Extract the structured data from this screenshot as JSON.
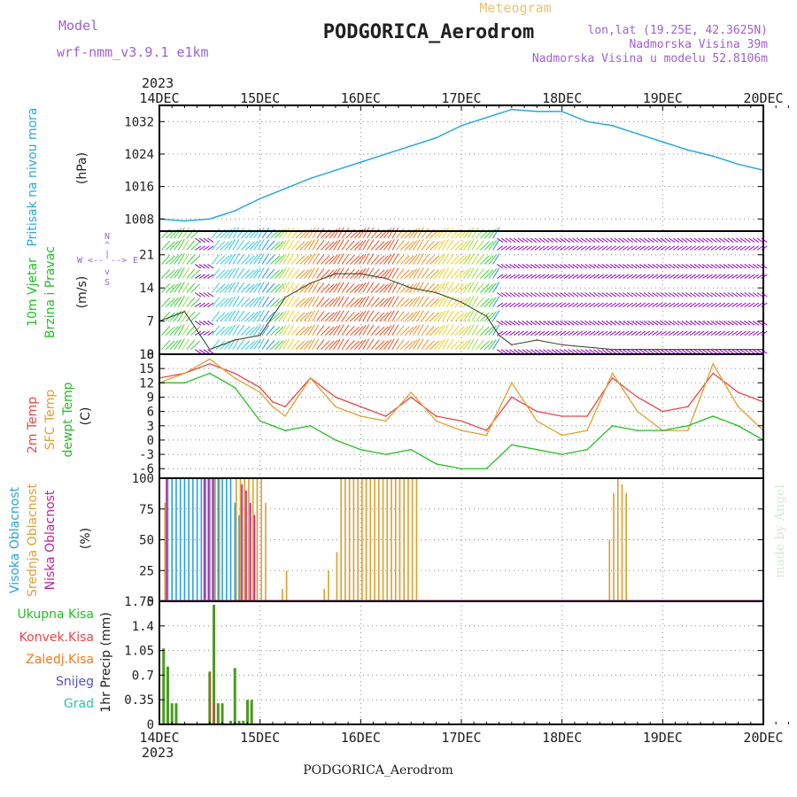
{
  "header": {
    "model_label": "Model",
    "model_name": "wrf-nmm_v3.9.1 e1km",
    "meteogram_label": "Meteogram",
    "station": "PODGORICA_Aerodrom",
    "lonlat": "lon,lat (19.25E, 42.3625N)",
    "elevation": "Nadmorska Visina 39m",
    "model_elevation": "Nadmorska Visina u modelu 52.8106m",
    "year": "2023",
    "footer_station": "PODGORICA_Aerodrom",
    "credit": "made by Angel"
  },
  "colors": {
    "pressure": "#29a8e0",
    "temp2m": "#e84848",
    "sfc": "#e0a030",
    "dewpt": "#22c022",
    "high_cloud": "#2aa0e0",
    "mid_cloud": "#d9a030",
    "low_cloud": "#c0209a",
    "total_precip": "#4a9a20",
    "conv_precip": "#e04040",
    "frz_precip": "#f08020",
    "snow": "#5050d0",
    "hail": "#30c0b0",
    "wind_calm": "#9000d0",
    "grid": "#888888",
    "header_purple": "#a060d0",
    "header_orange": "#f0c070"
  },
  "x_axis": {
    "start": "2023-12-14T00:00",
    "end": "2023-12-20T00:00",
    "ticks": [
      "14DEC",
      "15DEC",
      "16DEC",
      "17DEC",
      "18DEC",
      "19DEC",
      "20DEC"
    ]
  },
  "labels": {
    "p1": [
      "Pritisak na nivou mora"
    ],
    "p1_unit": "(hPa)",
    "p2": [
      "10m Vjetar",
      "Brzina i Pravac"
    ],
    "p2_unit": "(m/s)",
    "p2_compass": [
      "N",
      "^",
      "|",
      "W",
      "<--",
      "-->",
      "E",
      "v",
      "S"
    ],
    "p3": [
      "2m Temp",
      "SFC Temp",
      "dewpt Temp"
    ],
    "p3_unit": "(C)",
    "p4": [
      "Visoka Oblacnost",
      "Srednja Oblacnost",
      "Niska Oblacnost"
    ],
    "p4_unit": "(%)",
    "p5_legend": [
      "Ukupna Kisa",
      "Konvek.Kisa",
      "Zaledj.Kisa",
      "Snijeg",
      "Grad"
    ],
    "p5_unit": "1hr Precip (mm)"
  },
  "chart_data": [
    {
      "type": "line",
      "title": "Pritisak na nivou mora",
      "ylabel": "(hPa)",
      "ylim": [
        1005,
        1036
      ],
      "yticks": [
        "1008",
        "1016",
        "1024",
        "1032"
      ],
      "grid": true,
      "series": [
        {
          "name": "Pritisak na nivou mora",
          "x": [
            "14DEC 00",
            "14DEC 06",
            "14DEC 12",
            "14DEC 18",
            "15DEC 00",
            "15DEC 06",
            "15DEC 12",
            "15DEC 18",
            "16DEC 00",
            "16DEC 06",
            "16DEC 12",
            "16DEC 18",
            "17DEC 00",
            "17DEC 06",
            "17DEC 09",
            "17DEC 12",
            "17DEC 18",
            "18DEC 00",
            "18DEC 06",
            "18DEC 12",
            "18DEC 18",
            "19DEC 00",
            "19DEC 06",
            "19DEC 12",
            "19DEC 18",
            "20DEC 00"
          ],
          "values": [
            1008,
            1007.5,
            1008,
            1010,
            1013,
            1015.5,
            1018,
            1020,
            1022,
            1024,
            1026,
            1028,
            1031,
            1033,
            1034,
            1035,
            1034.5,
            1034.5,
            1032,
            1031,
            1029,
            1027,
            1025,
            1023.5,
            1021.5,
            1020
          ]
        }
      ]
    },
    {
      "type": "scatter",
      "title": "10m Vjetar Brzina i Pravac",
      "ylabel": "(m/s)",
      "ylim": [
        0,
        26
      ],
      "yticks": [
        "0",
        "7",
        "14",
        "21"
      ],
      "grid": true,
      "series": [
        {
          "name": "10m Vjetar",
          "x": [
            "14DEC 00",
            "14DEC 06",
            "14DEC 09",
            "14DEC 12",
            "14DEC 18",
            "15DEC 00",
            "15DEC 06",
            "15DEC 12",
            "15DEC 18",
            "16DEC 00",
            "16DEC 06",
            "16DEC 12",
            "16DEC 18",
            "17DEC 00",
            "17DEC 06",
            "17DEC 09",
            "17DEC 12",
            "17DEC 18",
            "18DEC 00",
            "18DEC 12",
            "19DEC 00",
            "19DEC 12",
            "20DEC 00"
          ],
          "values": [
            7,
            9,
            5,
            1,
            3,
            4,
            12,
            15,
            17,
            17,
            16,
            14,
            13,
            11,
            8,
            4,
            2,
            3,
            2,
            1,
            1,
            1,
            1
          ]
        }
      ]
    },
    {
      "type": "line",
      "title": "Temperatura",
      "ylabel": "(C)",
      "ylim": [
        -8,
        18
      ],
      "yticks": [
        "-6",
        "-3",
        "0",
        "3",
        "6",
        "9",
        "12",
        "15",
        "18"
      ],
      "grid": true,
      "series": [
        {
          "name": "2m Temp",
          "x": [
            "14DEC 00",
            "14DEC 06",
            "14DEC 12",
            "14DEC 18",
            "15DEC 00",
            "15DEC 03",
            "15DEC 06",
            "15DEC 12",
            "15DEC 18",
            "16DEC 00",
            "16DEC 06",
            "16DEC 12",
            "16DEC 18",
            "17DEC 00",
            "17DEC 06",
            "17DEC 12",
            "17DEC 18",
            "18DEC 00",
            "18DEC 06",
            "18DEC 12",
            "18DEC 18",
            "19DEC 00",
            "19DEC 06",
            "19DEC 12",
            "19DEC 18",
            "20DEC 00"
          ],
          "values": [
            13,
            14,
            16,
            14,
            11,
            8,
            7,
            13,
            9,
            7,
            5,
            9,
            5,
            4,
            2,
            9,
            6,
            5,
            5,
            13,
            9,
            6,
            7,
            14,
            10,
            8
          ]
        },
        {
          "name": "SFC Temp",
          "x": [
            "14DEC 00",
            "14DEC 06",
            "14DEC 12",
            "14DEC 18",
            "15DEC 00",
            "15DEC 03",
            "15DEC 06",
            "15DEC 12",
            "15DEC 18",
            "16DEC 00",
            "16DEC 06",
            "16DEC 12",
            "16DEC 18",
            "17DEC 00",
            "17DEC 06",
            "17DEC 12",
            "17DEC 18",
            "18DEC 00",
            "18DEC 06",
            "18DEC 12",
            "18DEC 18",
            "19DEC 00",
            "19DEC 06",
            "19DEC 12",
            "19DEC 18",
            "20DEC 00"
          ],
          "values": [
            12,
            14,
            17,
            13,
            10,
            7,
            5,
            13,
            7,
            5,
            4,
            10,
            4,
            2,
            1,
            12,
            4,
            1,
            2,
            14,
            6,
            2,
            2,
            16,
            7,
            2
          ]
        },
        {
          "name": "dewpt Temp",
          "x": [
            "14DEC 00",
            "14DEC 06",
            "14DEC 12",
            "14DEC 18",
            "15DEC 00",
            "15DEC 06",
            "15DEC 12",
            "15DEC 18",
            "16DEC 00",
            "16DEC 06",
            "16DEC 12",
            "16DEC 18",
            "17DEC 00",
            "17DEC 06",
            "17DEC 12",
            "17DEC 18",
            "18DEC 00",
            "18DEC 06",
            "18DEC 12",
            "18DEC 18",
            "19DEC 00",
            "19DEC 06",
            "19DEC 12",
            "19DEC 18",
            "20DEC 00"
          ],
          "values": [
            12,
            12,
            14,
            11,
            4,
            2,
            3,
            0,
            -2,
            -3,
            -2,
            -5,
            -6,
            -6,
            -1,
            -2,
            -3,
            -2,
            3,
            2,
            2,
            3,
            5,
            3,
            0
          ]
        }
      ]
    },
    {
      "type": "bar",
      "title": "Oblacnost",
      "ylabel": "(%)",
      "ylim": [
        0,
        100
      ],
      "yticks": [
        "0",
        "25",
        "50",
        "75",
        "100"
      ],
      "grid": true,
      "series": [
        {
          "name": "Visoka Oblacnost",
          "x": [
            "14DEC 02",
            "14DEC 03",
            "14DEC 04",
            "14DEC 05",
            "14DEC 06",
            "14DEC 07",
            "14DEC 08",
            "14DEC 09",
            "14DEC 10",
            "14DEC 11",
            "14DEC 12",
            "14DEC 13",
            "14DEC 14",
            "14DEC 15",
            "14DEC 16",
            "14DEC 17",
            "14DEC 18",
            "14DEC 19"
          ],
          "values": [
            100,
            100,
            100,
            100,
            100,
            100,
            100,
            100,
            100,
            100,
            100,
            100,
            100,
            100,
            100,
            100,
            80,
            70
          ]
        },
        {
          "name": "Srednja Oblacnost",
          "x": [
            "14DEC 01",
            "14DEC 13",
            "14DEC 14",
            "14DEC 18",
            "14DEC 19",
            "14DEC 20",
            "14DEC 21",
            "14DEC 22",
            "14DEC 23",
            "15DEC 00",
            "15DEC 01",
            "15DEC 05",
            "15DEC 06",
            "15DEC 15",
            "15DEC 16",
            "15DEC 18",
            "15DEC 19",
            "15DEC 20",
            "15DEC 21",
            "15DEC 22",
            "15DEC 23",
            "16DEC 00",
            "16DEC 01",
            "16DEC 02",
            "16DEC 03",
            "16DEC 04",
            "16DEC 05",
            "16DEC 06",
            "16DEC 07",
            "16DEC 08",
            "16DEC 09",
            "16DEC 10",
            "16DEC 11",
            "16DEC 12",
            "16DEC 13",
            "18DEC 11",
            "18DEC 12",
            "18DEC 13",
            "18DEC 14",
            "18DEC 15"
          ],
          "values": [
            80,
            100,
            100,
            100,
            100,
            100,
            100,
            100,
            100,
            100,
            80,
            10,
            25,
            10,
            25,
            40,
            100,
            100,
            100,
            100,
            100,
            100,
            100,
            100,
            100,
            100,
            100,
            100,
            100,
            100,
            100,
            100,
            100,
            100,
            100,
            50,
            88,
            100,
            95,
            88
          ]
        },
        {
          "name": "Niska Oblacnost",
          "x": [
            "14DEC 02",
            "14DEC 11",
            "14DEC 12",
            "14DEC 13",
            "14DEC 20",
            "14DEC 21",
            "14DEC 22",
            "14DEC 23"
          ],
          "values": [
            100,
            100,
            100,
            100,
            95,
            90,
            80,
            70
          ]
        }
      ]
    },
    {
      "type": "bar",
      "title": "1hr Precip",
      "ylabel": "(mm)",
      "ylim": [
        0,
        1.75
      ],
      "yticks": [
        "0",
        "0.35",
        "0.7",
        "1.05",
        "1.4",
        "1.75"
      ],
      "grid": true,
      "series": [
        {
          "name": "Ukupna Kisa",
          "x": [
            "14DEC 01",
            "14DEC 02",
            "14DEC 03",
            "14DEC 04",
            "14DEC 12",
            "14DEC 13",
            "14DEC 14",
            "14DEC 15",
            "14DEC 17",
            "14DEC 18",
            "14DEC 19",
            "14DEC 20",
            "14DEC 21",
            "14DEC 22"
          ],
          "values": [
            1.08,
            0.82,
            0.3,
            0.3,
            0.75,
            1.7,
            0.3,
            0.3,
            0.05,
            0.8,
            0.05,
            0.05,
            0.35,
            0.35
          ]
        },
        {
          "name": "Konvek.Kisa",
          "x": [
            "14DEC 12",
            "14DEC 13"
          ],
          "values": [
            0.75,
            0.3
          ]
        }
      ]
    }
  ]
}
